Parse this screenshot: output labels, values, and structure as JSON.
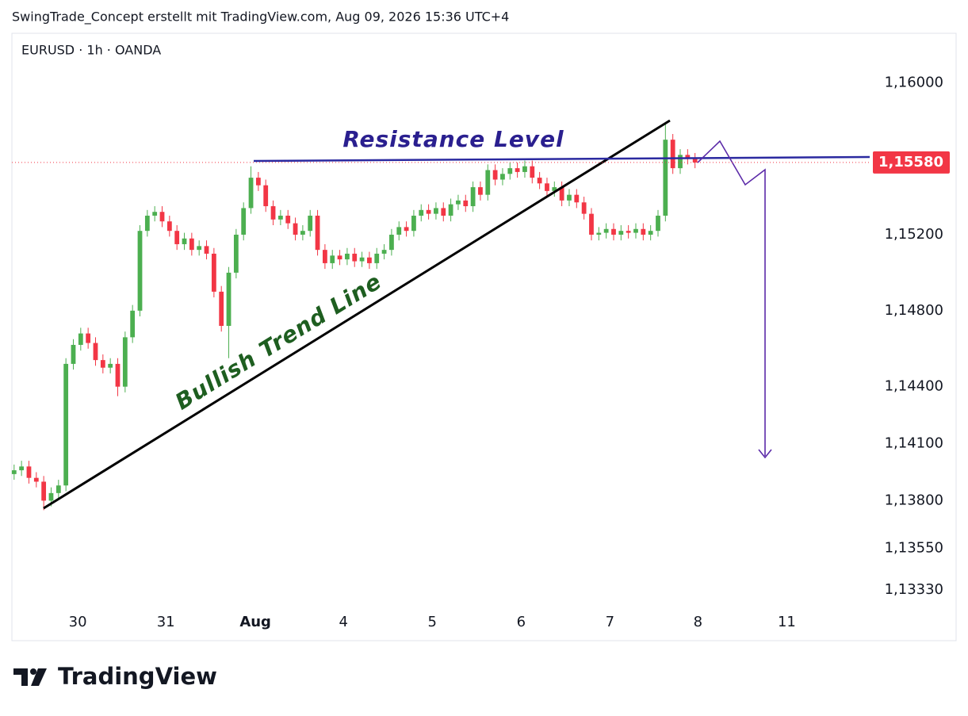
{
  "header": "SwingTrade_Concept erstellt mit TradingView.com, Aug 09, 2026 15:36 UTC+4",
  "symbol": "EURUSD · 1h · OANDA",
  "footer_logo": "TradingView",
  "chart_data": {
    "type": "candlestick",
    "up_color": "#4caf50",
    "down_color": "#f23645",
    "xlim": [
      -0.3,
      115.6
    ],
    "ylim": [
      1.1323,
      1.1626
    ],
    "xticks": [
      {
        "value": 8.6,
        "label": "30"
      },
      {
        "value": 20.5,
        "label": "31"
      },
      {
        "value": 32.6,
        "label": "Aug"
      },
      {
        "value": 44.5,
        "label": "4"
      },
      {
        "value": 56.5,
        "label": "5"
      },
      {
        "value": 68.5,
        "label": "6"
      },
      {
        "value": 80.5,
        "label": "7"
      },
      {
        "value": 92.4,
        "label": "8"
      },
      {
        "value": 104.4,
        "label": "11"
      }
    ],
    "yticks": [
      {
        "value": 1.16,
        "label": "1,16000"
      },
      {
        "value": 1.152,
        "label": "1,15200"
      },
      {
        "value": 1.148,
        "label": "1,14800"
      },
      {
        "value": 1.144,
        "label": "1,14400"
      },
      {
        "value": 1.141,
        "label": "1,14100"
      },
      {
        "value": 1.138,
        "label": "1,13800"
      },
      {
        "value": 1.1355,
        "label": "1,13550"
      },
      {
        "value": 1.1333,
        "label": "1,13330"
      }
    ],
    "last_price": {
      "value": 1.1558,
      "label": "1,15580"
    },
    "annotations": [
      "Resistance Level",
      "Bullish Trend Line"
    ],
    "open": [
      1.1394,
      1.1396,
      1.1398,
      1.1392,
      1.139,
      1.138,
      1.1384,
      1.1388,
      1.1452,
      1.1462,
      1.1468,
      1.1463,
      1.1454,
      1.145,
      1.1452,
      1.144,
      1.1466,
      1.148,
      1.1522,
      1.153,
      1.1532,
      1.1527,
      1.1522,
      1.1515,
      1.1518,
      1.1512,
      1.1514,
      1.151,
      1.149,
      1.1472,
      1.15,
      1.152,
      1.1534,
      1.155,
      1.1546,
      1.1535,
      1.1528,
      1.153,
      1.1526,
      1.152,
      1.1522,
      1.153,
      1.1512,
      1.1505,
      1.1509,
      1.1507,
      1.151,
      1.1506,
      1.1508,
      1.1505,
      1.151,
      1.1512,
      1.152,
      1.1524,
      1.1522,
      1.153,
      1.1533,
      1.1531,
      1.1534,
      1.153,
      1.1536,
      1.1538,
      1.1535,
      1.1545,
      1.1541,
      1.1554,
      1.1549,
      1.1552,
      1.1555,
      1.1553,
      1.1556,
      1.155,
      1.1547,
      1.1543,
      1.1545,
      1.1538,
      1.1541,
      1.1537,
      1.1531,
      1.152,
      1.1521,
      1.1523,
      1.152,
      1.1522,
      1.1521,
      1.1523,
      1.152,
      1.1522,
      1.153,
      1.157,
      1.1555,
      1.1562,
      1.156
    ],
    "high": [
      1.1399,
      1.1401,
      1.1401,
      1.1395,
      1.1393,
      1.1387,
      1.1391,
      1.1455,
      1.1465,
      1.1471,
      1.1471,
      1.1466,
      1.1457,
      1.1455,
      1.1455,
      1.1469,
      1.1483,
      1.1525,
      1.1533,
      1.1535,
      1.1535,
      1.153,
      1.1525,
      1.1521,
      1.1521,
      1.1517,
      1.1517,
      1.1513,
      1.1493,
      1.1503,
      1.1523,
      1.1537,
      1.1556,
      1.1553,
      1.1549,
      1.1538,
      1.1533,
      1.1533,
      1.1529,
      1.1525,
      1.1533,
      1.1533,
      1.1515,
      1.1512,
      1.1512,
      1.1513,
      1.1513,
      1.1511,
      1.1511,
      1.1513,
      1.1515,
      1.1523,
      1.1527,
      1.1527,
      1.1533,
      1.1536,
      1.1536,
      1.1537,
      1.1537,
      1.1539,
      1.1541,
      1.1541,
      1.1548,
      1.1548,
      1.1557,
      1.1557,
      1.1555,
      1.1558,
      1.1558,
      1.1559,
      1.1559,
      1.1553,
      1.155,
      1.1548,
      1.1548,
      1.1544,
      1.1544,
      1.154,
      1.1534,
      1.1524,
      1.1526,
      1.1526,
      1.1525,
      1.1525,
      1.1526,
      1.1526,
      1.1525,
      1.1533,
      1.1578,
      1.1573,
      1.1565,
      1.1565,
      1.1563
    ],
    "low": [
      1.1391,
      1.1393,
      1.1389,
      1.1387,
      1.1375,
      1.1377,
      1.1381,
      1.1385,
      1.1449,
      1.1459,
      1.146,
      1.1451,
      1.1447,
      1.1447,
      1.1435,
      1.1437,
      1.1463,
      1.1477,
      1.1519,
      1.1527,
      1.1524,
      1.1519,
      1.1512,
      1.1512,
      1.1509,
      1.1509,
      1.1507,
      1.1487,
      1.1469,
      1.1455,
      1.1497,
      1.1517,
      1.1531,
      1.1543,
      1.1532,
      1.1525,
      1.1525,
      1.1523,
      1.1517,
      1.1517,
      1.1519,
      1.1509,
      1.1502,
      1.1502,
      1.1504,
      1.1504,
      1.1503,
      1.1503,
      1.1502,
      1.1502,
      1.1507,
      1.1509,
      1.1517,
      1.1519,
      1.1519,
      1.1527,
      1.1528,
      1.1528,
      1.1527,
      1.1527,
      1.1533,
      1.1532,
      1.1532,
      1.1538,
      1.1538,
      1.1546,
      1.1546,
      1.1549,
      1.155,
      1.155,
      1.1547,
      1.1544,
      1.154,
      1.154,
      1.1535,
      1.1535,
      1.1534,
      1.1528,
      1.1517,
      1.1517,
      1.1518,
      1.1517,
      1.1517,
      1.1518,
      1.1518,
      1.1517,
      1.1517,
      1.1519,
      1.1527,
      1.1552,
      1.1552,
      1.1557,
      1.1555
    ],
    "close": [
      1.1396,
      1.1398,
      1.1392,
      1.139,
      1.138,
      1.1384,
      1.1388,
      1.1452,
      1.1462,
      1.1468,
      1.1463,
      1.1454,
      1.145,
      1.1452,
      1.144,
      1.1466,
      1.148,
      1.1522,
      1.153,
      1.1532,
      1.1527,
      1.1522,
      1.1515,
      1.1518,
      1.1512,
      1.1514,
      1.151,
      1.149,
      1.1472,
      1.15,
      1.152,
      1.1534,
      1.155,
      1.1546,
      1.1535,
      1.1528,
      1.153,
      1.1526,
      1.152,
      1.1522,
      1.153,
      1.1512,
      1.1505,
      1.1509,
      1.1507,
      1.151,
      1.1506,
      1.1508,
      1.1505,
      1.151,
      1.1512,
      1.152,
      1.1524,
      1.1522,
      1.153,
      1.1533,
      1.1531,
      1.1534,
      1.153,
      1.1536,
      1.1538,
      1.1535,
      1.1545,
      1.1541,
      1.1554,
      1.1549,
      1.1552,
      1.1555,
      1.1553,
      1.1556,
      1.155,
      1.1547,
      1.1543,
      1.1545,
      1.1538,
      1.1541,
      1.1537,
      1.1531,
      1.152,
      1.1521,
      1.1523,
      1.152,
      1.1522,
      1.1521,
      1.1523,
      1.152,
      1.1522,
      1.153,
      1.157,
      1.1555,
      1.1562,
      1.156,
      1.1558
    ]
  }
}
